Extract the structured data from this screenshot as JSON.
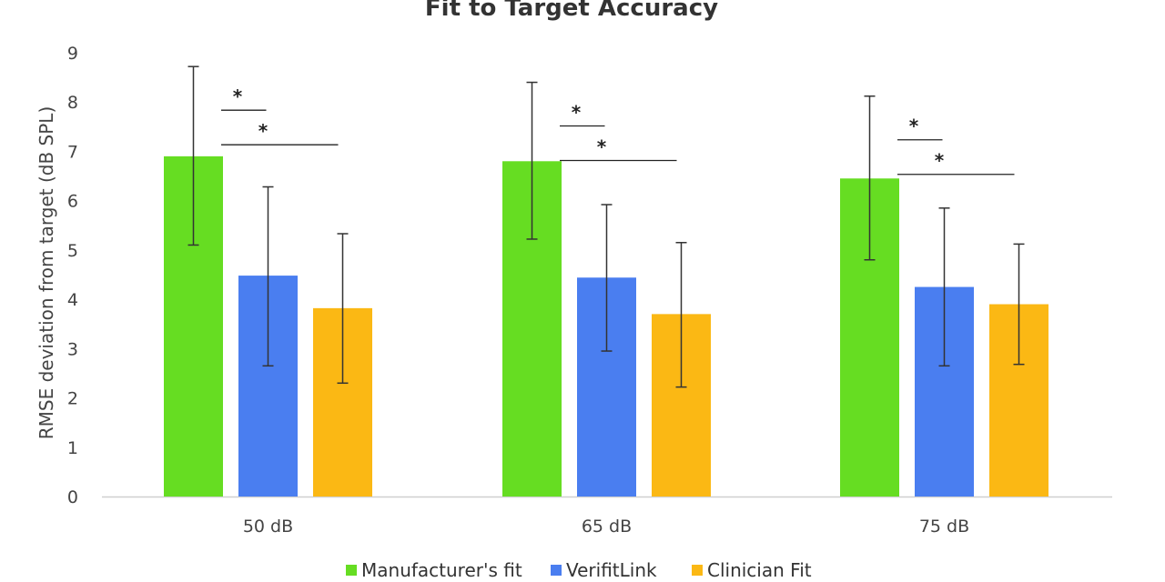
{
  "chart_data": {
    "type": "bar",
    "title": "Fit to Target  Accuracy",
    "xlabel": "",
    "ylabel": "RMSE deviation from target (dB SPL)",
    "ylim": [
      0,
      9
    ],
    "yticks": [
      "0",
      "1",
      "2",
      "3",
      "4",
      "5",
      "6",
      "7",
      "8",
      "9"
    ],
    "grid": false,
    "legend_position": "bottom",
    "categories": [
      "50 dB",
      "65 dB",
      "75 dB"
    ],
    "series": [
      {
        "name": "Manufacturer's fit",
        "color": "#66dd22",
        "values": [
          6.9,
          6.8,
          6.45
        ],
        "error_low": [
          5.1,
          5.22,
          4.8
        ],
        "error_high": [
          8.72,
          8.4,
          8.12
        ]
      },
      {
        "name": "VerifitLink",
        "color": "#4a7ef0",
        "values": [
          4.48,
          4.44,
          4.25
        ],
        "error_low": [
          2.65,
          2.95,
          2.65
        ],
        "error_high": [
          6.28,
          5.92,
          5.85
        ]
      },
      {
        "name": "Clinician Fit",
        "color": "#fbb814",
        "values": [
          3.82,
          3.7,
          3.9
        ],
        "error_low": [
          2.3,
          2.22,
          2.68
        ],
        "error_high": [
          5.33,
          5.15,
          5.12
        ]
      }
    ],
    "significance": [
      {
        "category": 0,
        "from_series": 0,
        "to_series": 1,
        "label": "*"
      },
      {
        "category": 0,
        "from_series": 0,
        "to_series": 2,
        "label": "*"
      },
      {
        "category": 1,
        "from_series": 0,
        "to_series": 1,
        "label": "*"
      },
      {
        "category": 1,
        "from_series": 0,
        "to_series": 2,
        "label": "*"
      },
      {
        "category": 2,
        "from_series": 0,
        "to_series": 1,
        "label": "*"
      },
      {
        "category": 2,
        "from_series": 0,
        "to_series": 2,
        "label": "*"
      }
    ]
  }
}
